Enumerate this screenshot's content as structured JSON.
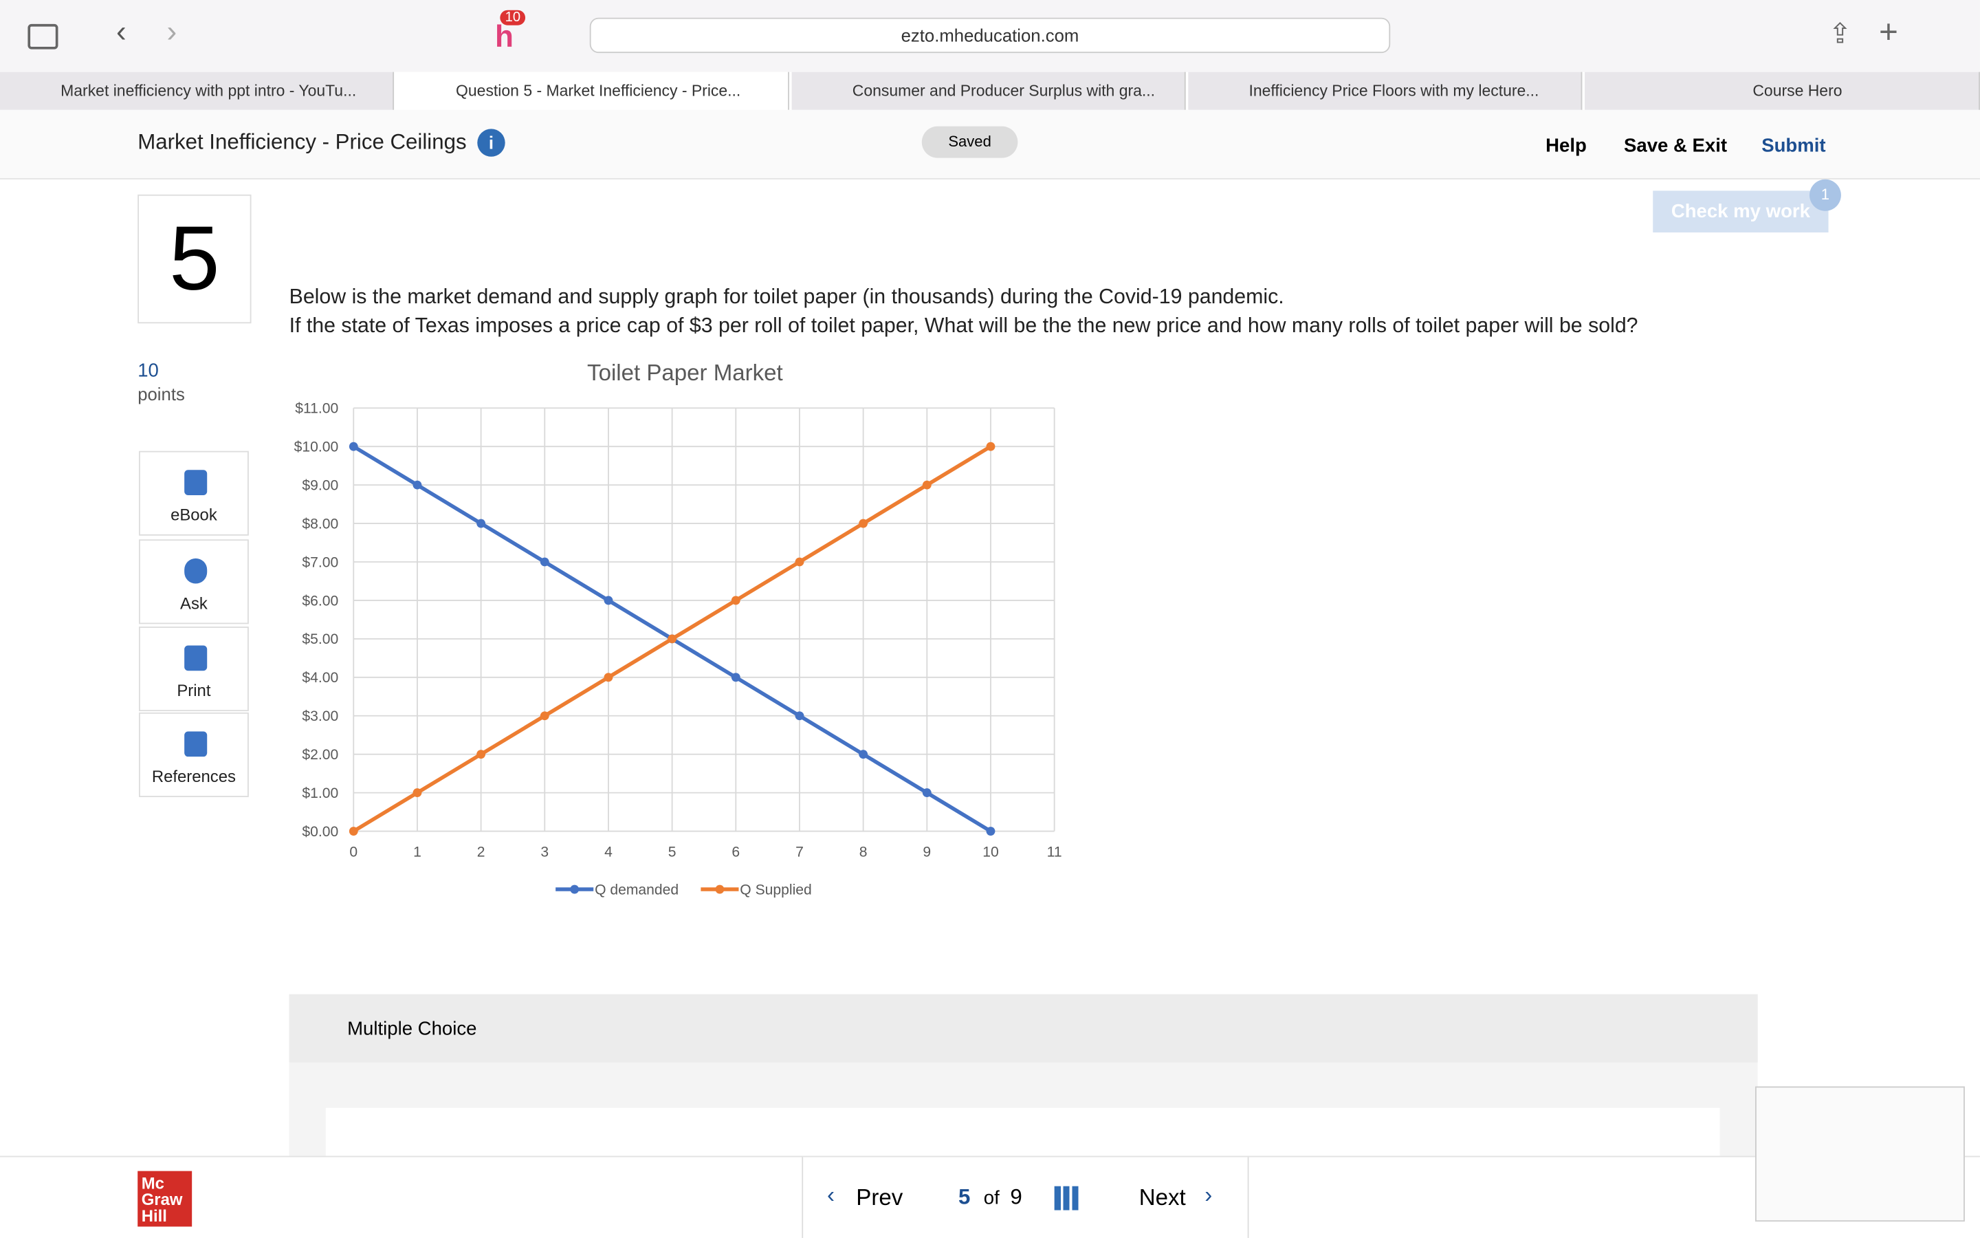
{
  "browser": {
    "badge": "10",
    "url": "ezto.mheducation.com",
    "tabs": [
      "Market inefficiency with ppt intro - YouTu...",
      "Question 5 - Market Inefficiency - Price...",
      "Consumer and Producer Surplus with gra...",
      "Inefficiency Price Floors with my lecture...",
      "Course Hero"
    ]
  },
  "header": {
    "title": "Market Inefficiency - Price Ceilings",
    "saved": "Saved",
    "help": "Help",
    "save_exit": "Save & Exit",
    "submit": "Submit"
  },
  "question": {
    "number": "5",
    "points": "10",
    "points_label": "points",
    "check": "Check my work",
    "check_badge": "1",
    "text": [
      "Below is the market demand and supply graph for toilet paper (in thousands) during the Covid-19 pandemic.",
      "If the state of Texas imposes a price cap of $3 per roll of toilet paper, What will be the the new price and how many rolls of toilet paper will be sold?"
    ],
    "tools": [
      "eBook",
      "Ask",
      "Print",
      "References"
    ],
    "section": "Multiple Choice"
  },
  "chart_data": {
    "type": "line",
    "title": "Toilet Paper Market",
    "x": [
      0,
      1,
      2,
      3,
      4,
      5,
      6,
      7,
      8,
      9,
      10
    ],
    "series": [
      {
        "name": "Q demanded",
        "color": "#4472c4",
        "values": [
          10,
          9,
          8,
          7,
          6,
          5,
          4,
          3,
          2,
          1,
          0
        ]
      },
      {
        "name": "Q Supplied",
        "color": "#ed7d31",
        "values": [
          0,
          1,
          2,
          3,
          4,
          5,
          6,
          7,
          8,
          9,
          10
        ]
      }
    ],
    "xlim": [
      0,
      11
    ],
    "xticks": [
      0,
      1,
      2,
      3,
      4,
      5,
      6,
      7,
      8,
      9,
      10,
      11
    ],
    "ylim": [
      0,
      11
    ],
    "yticks": [
      {
        "value": 0,
        "label": "$0.00"
      },
      {
        "value": 1,
        "label": "$1.00"
      },
      {
        "value": 2,
        "label": "$2.00"
      },
      {
        "value": 3,
        "label": "$3.00"
      },
      {
        "value": 4,
        "label": "$4.00"
      },
      {
        "value": 5,
        "label": "$5.00"
      },
      {
        "value": 6,
        "label": "$6.00"
      },
      {
        "value": 7,
        "label": "$7.00"
      },
      {
        "value": 8,
        "label": "$8.00"
      },
      {
        "value": 9,
        "label": "$9.00"
      },
      {
        "value": 10,
        "label": "$10.00"
      },
      {
        "value": 11,
        "label": "$11.00"
      }
    ],
    "grid": true,
    "legend": "bottom"
  },
  "footer": {
    "logo": [
      "Mc",
      "Graw",
      "Hill"
    ],
    "prev": "Prev",
    "page": "5",
    "of": "of",
    "total": "9",
    "next": "Next"
  }
}
